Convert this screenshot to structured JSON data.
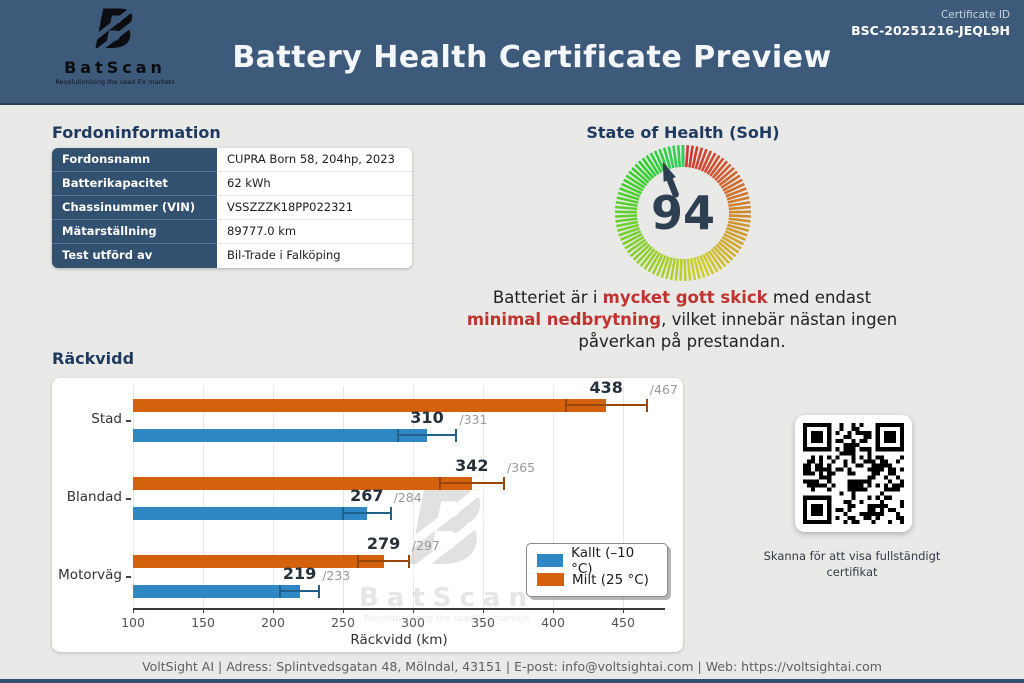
{
  "header": {
    "logo_letter": "B",
    "logo_name": "BatScan",
    "logo_tagline": "Revolutionizing the used EV markets",
    "title": "Battery Health Certificate Preview",
    "certificate_id_label": "Certificate ID",
    "certificate_id": "BSC-20251216-JEQL9H"
  },
  "vehicle_info": {
    "heading": "Fordoninformation",
    "rows": [
      {
        "label": "Fordonsnamn",
        "value": "CUPRA Born 58, 204hp, 2023"
      },
      {
        "label": "Batterikapacitet",
        "value": "62 kWh"
      },
      {
        "label": "Chassinummer (VIN)",
        "value": "VSSZZZK18PP022321"
      },
      {
        "label": "Mätarställning",
        "value": "89777.0 km"
      },
      {
        "label": "Test utförd av",
        "value": "Bil-Trade i Falköping"
      }
    ]
  },
  "soh": {
    "heading": "State of Health (SoH)",
    "value": 94,
    "max": 100,
    "description_parts": [
      {
        "t": "Batteriet är i ",
        "em": false
      },
      {
        "t": "mycket gott skick",
        "em": true
      },
      {
        "t": " med endast ",
        "em": false
      },
      {
        "t": "minimal nedbrytning",
        "em": true
      },
      {
        "t": ", vilket innebär nästan ingen påverkan på prestandan.",
        "em": false
      }
    ]
  },
  "chart_data": {
    "type": "bar",
    "orientation": "horizontal",
    "title": "Räckvidd",
    "categories": [
      "Stad",
      "Blandad",
      "Motorväg"
    ],
    "series": [
      {
        "name": "Kallt (–10 °C)",
        "color": "#2f87c3",
        "values": [
          310,
          267,
          219
        ],
        "upper": [
          331,
          284,
          233
        ]
      },
      {
        "name": "Milt (25 °C)",
        "color": "#d4610d",
        "values": [
          438,
          342,
          279
        ],
        "upper": [
          467,
          365,
          297
        ]
      }
    ],
    "xlabel": "Räckvidd (km)",
    "xticks": [
      100,
      150,
      200,
      250,
      300,
      350,
      400,
      450
    ],
    "xlim": [
      100,
      480
    ],
    "grid": true,
    "legend_position": "lower right"
  },
  "qr": {
    "caption": "Skanna för att visa fullständigt certifikat"
  },
  "footer": {
    "text": "VoltSight AI | Adress: Splintvedsgatan 48, Mölndal, 43151 | E-post: info@voltsightai.com | Web: https://voltsightai.com"
  },
  "colors": {
    "header_bg": "#3e5a7a",
    "table_label_bg": "#32506f",
    "heading_navy": "#1f3a5f",
    "bar_cold": "#2f87c3",
    "bar_mild": "#d4610d",
    "emphasis_red": "#bf3330",
    "gauge_number": "#2e3f52"
  }
}
